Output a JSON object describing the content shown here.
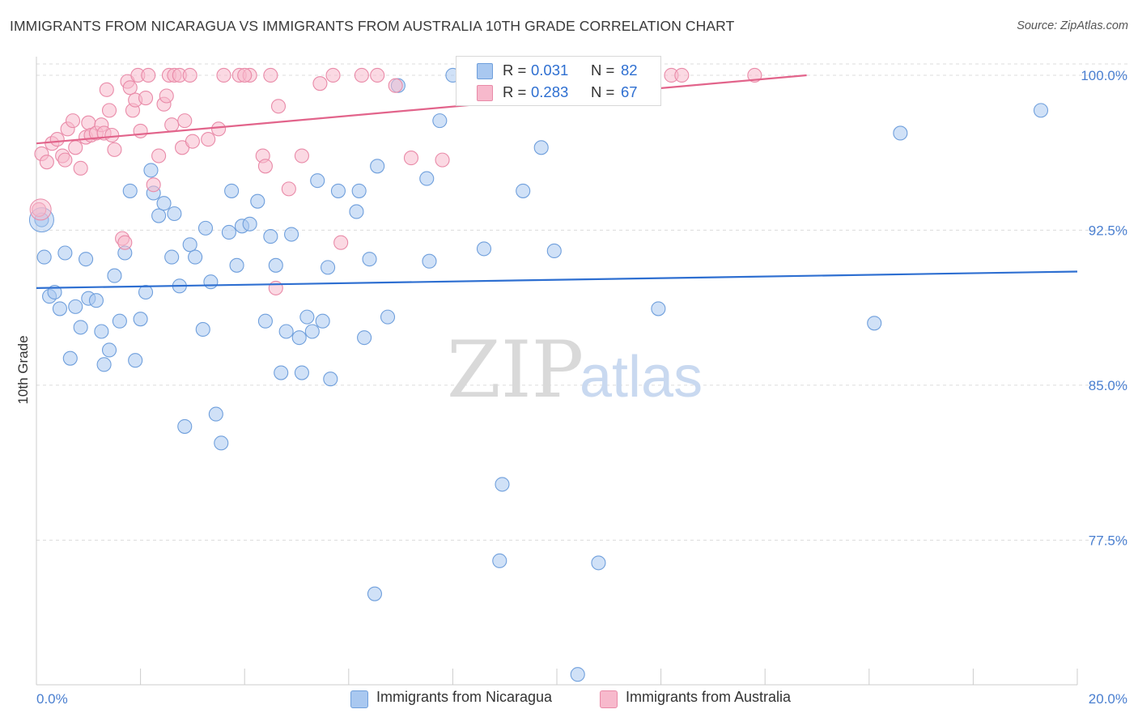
{
  "title": "IMMIGRANTS FROM NICARAGUA VS IMMIGRANTS FROM AUSTRALIA 10TH GRADE CORRELATION CHART",
  "source": "Source: ZipAtlas.com",
  "watermark": {
    "zip": "ZIP",
    "atlas": "atlas"
  },
  "colors": {
    "blue_fill": "#a9c8f0",
    "blue_stroke": "#6f9fdc",
    "blue_line": "#2e6fd1",
    "pink_fill": "#f7b9cc",
    "pink_stroke": "#e98aa8",
    "pink_line": "#e2648b",
    "grid": "#dcdcdc",
    "axis_label": "#4a7fd0"
  },
  "legend": {
    "rows": [
      {
        "r_label": "R =",
        "r_value": "0.031",
        "n_label": "N =",
        "n_value": "82"
      },
      {
        "r_label": "R =",
        "r_value": "0.283",
        "n_label": "N =",
        "n_value": "67"
      }
    ]
  },
  "bottom_legend": [
    "Immigrants from Nicaragua",
    "Immigrants from Australia"
  ],
  "chart_data": {
    "type": "scatter",
    "title": "IMMIGRANTS FROM NICARAGUA VS IMMIGRANTS FROM AUSTRALIA 10TH GRADE CORRELATION CHART",
    "xlabel": "",
    "ylabel": "10th Grade",
    "xlim": [
      0,
      20
    ],
    "ylim": [
      70.5,
      100.9
    ],
    "x_tick_labels": [
      "0.0%",
      "20.0%"
    ],
    "y_ticks": [
      77.5,
      85.0,
      92.5,
      100.0
    ],
    "y_tick_labels": [
      "77.5%",
      "85.0%",
      "92.5%",
      "100.0%"
    ],
    "grid": "horizontal dashed",
    "legend_position": "top-center",
    "series": [
      {
        "name": "Immigrants from Nicaragua",
        "color": "#a9c8f0",
        "r": 0.031,
        "n": 82,
        "trend": [
          [
            0,
            89.7
          ],
          [
            20,
            90.5
          ]
        ],
        "points": [
          [
            0.1,
            93.0
          ],
          [
            0.15,
            91.2
          ],
          [
            0.25,
            89.3
          ],
          [
            0.35,
            89.5
          ],
          [
            0.45,
            88.7
          ],
          [
            0.55,
            91.4
          ],
          [
            0.65,
            86.3
          ],
          [
            0.75,
            88.8
          ],
          [
            0.85,
            87.8
          ],
          [
            0.95,
            91.1
          ],
          [
            1.0,
            89.2
          ],
          [
            1.15,
            89.1
          ],
          [
            1.25,
            87.6
          ],
          [
            1.3,
            86.0
          ],
          [
            1.4,
            86.7
          ],
          [
            1.5,
            90.3
          ],
          [
            1.6,
            88.1
          ],
          [
            1.7,
            91.4
          ],
          [
            1.8,
            94.4
          ],
          [
            1.9,
            86.2
          ],
          [
            2.0,
            88.2
          ],
          [
            2.1,
            89.5
          ],
          [
            2.2,
            95.4
          ],
          [
            2.25,
            94.3
          ],
          [
            2.35,
            93.2
          ],
          [
            2.45,
            93.8
          ],
          [
            2.6,
            91.2
          ],
          [
            2.65,
            93.3
          ],
          [
            2.75,
            89.8
          ],
          [
            2.85,
            83.0
          ],
          [
            2.95,
            91.8
          ],
          [
            3.05,
            91.2
          ],
          [
            3.2,
            87.7
          ],
          [
            3.25,
            92.6
          ],
          [
            3.35,
            90.0
          ],
          [
            3.45,
            83.6
          ],
          [
            3.55,
            82.2
          ],
          [
            3.7,
            92.4
          ],
          [
            3.75,
            94.4
          ],
          [
            3.85,
            90.8
          ],
          [
            3.95,
            92.7
          ],
          [
            4.1,
            92.8
          ],
          [
            4.25,
            93.9
          ],
          [
            4.4,
            88.1
          ],
          [
            4.5,
            92.2
          ],
          [
            4.6,
            90.8
          ],
          [
            4.7,
            85.6
          ],
          [
            4.8,
            87.6
          ],
          [
            4.9,
            92.3
          ],
          [
            5.05,
            87.3
          ],
          [
            5.1,
            85.6
          ],
          [
            5.2,
            88.3
          ],
          [
            5.3,
            87.6
          ],
          [
            5.4,
            94.9
          ],
          [
            5.5,
            88.1
          ],
          [
            5.6,
            90.7
          ],
          [
            5.65,
            85.3
          ],
          [
            5.8,
            94.4
          ],
          [
            6.15,
            93.4
          ],
          [
            6.2,
            94.4
          ],
          [
            6.3,
            87.3
          ],
          [
            6.4,
            91.1
          ],
          [
            6.5,
            74.9
          ],
          [
            6.55,
            95.6
          ],
          [
            6.75,
            88.3
          ],
          [
            6.95,
            99.5
          ],
          [
            7.5,
            95.0
          ],
          [
            7.55,
            91.0
          ],
          [
            7.75,
            97.8
          ],
          [
            8.0,
            100.0
          ],
          [
            8.6,
            91.6
          ],
          [
            8.95,
            80.2
          ],
          [
            8.9,
            76.5
          ],
          [
            9.35,
            94.4
          ],
          [
            9.7,
            96.5
          ],
          [
            9.95,
            91.5
          ],
          [
            10.4,
            71.0
          ],
          [
            10.8,
            76.4
          ],
          [
            11.95,
            88.7
          ],
          [
            16.1,
            88.0
          ],
          [
            16.6,
            97.2
          ],
          [
            19.3,
            98.3
          ]
        ]
      },
      {
        "name": "Immigrants from Australia",
        "color": "#f7b9cc",
        "r": 0.283,
        "n": 67,
        "trend": [
          [
            0,
            96.7
          ],
          [
            14.8,
            100.0
          ]
        ],
        "points": [
          [
            0.05,
            93.5
          ],
          [
            0.1,
            96.2
          ],
          [
            0.2,
            95.8
          ],
          [
            0.3,
            96.7
          ],
          [
            0.4,
            96.9
          ],
          [
            0.5,
            96.1
          ],
          [
            0.55,
            95.9
          ],
          [
            0.6,
            97.4
          ],
          [
            0.7,
            97.8
          ],
          [
            0.75,
            96.5
          ],
          [
            0.85,
            95.5
          ],
          [
            0.95,
            97.0
          ],
          [
            1.0,
            97.7
          ],
          [
            1.05,
            97.1
          ],
          [
            1.15,
            97.2
          ],
          [
            1.25,
            97.6
          ],
          [
            1.3,
            97.2
          ],
          [
            1.35,
            99.3
          ],
          [
            1.4,
            98.3
          ],
          [
            1.45,
            97.1
          ],
          [
            1.5,
            96.4
          ],
          [
            1.65,
            92.1
          ],
          [
            1.7,
            91.9
          ],
          [
            1.75,
            99.7
          ],
          [
            1.8,
            99.4
          ],
          [
            1.85,
            98.3
          ],
          [
            1.9,
            98.8
          ],
          [
            1.95,
            100.0
          ],
          [
            2.0,
            97.3
          ],
          [
            2.1,
            98.9
          ],
          [
            2.15,
            100.0
          ],
          [
            2.25,
            94.7
          ],
          [
            2.35,
            96.1
          ],
          [
            2.45,
            98.6
          ],
          [
            2.5,
            99.0
          ],
          [
            2.55,
            100.0
          ],
          [
            2.6,
            97.6
          ],
          [
            2.65,
            100.0
          ],
          [
            2.75,
            100.0
          ],
          [
            2.8,
            96.5
          ],
          [
            2.85,
            97.8
          ],
          [
            2.95,
            100.0
          ],
          [
            3.0,
            96.8
          ],
          [
            3.3,
            96.9
          ],
          [
            3.5,
            97.4
          ],
          [
            3.6,
            100.0
          ],
          [
            3.9,
            100.0
          ],
          [
            4.1,
            100.0
          ],
          [
            4.35,
            96.1
          ],
          [
            4.4,
            95.6
          ],
          [
            4.5,
            100.0
          ],
          [
            4.6,
            89.7
          ],
          [
            4.65,
            98.5
          ],
          [
            4.85,
            94.5
          ],
          [
            5.1,
            96.1
          ],
          [
            5.45,
            99.6
          ],
          [
            5.7,
            100.0
          ],
          [
            5.85,
            91.9
          ],
          [
            6.25,
            100.0
          ],
          [
            6.55,
            100.0
          ],
          [
            6.9,
            99.5
          ],
          [
            7.2,
            96.0
          ],
          [
            7.8,
            95.9
          ],
          [
            12.2,
            100.0
          ],
          [
            12.4,
            100.0
          ],
          [
            13.8,
            100.0
          ],
          [
            4.0,
            100.0
          ]
        ]
      }
    ]
  }
}
